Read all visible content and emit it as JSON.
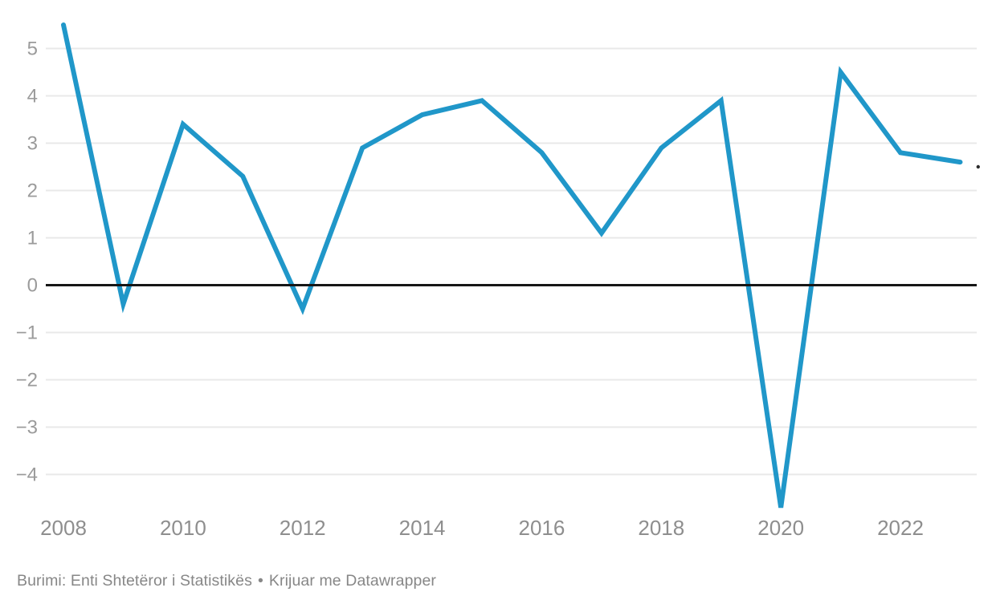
{
  "footer": {
    "source": "Burimi: Enti Shtetëror i Statistikës",
    "separator": "•",
    "credit": "Krijuar me Datawrapper"
  },
  "chart_data": {
    "type": "line",
    "title": "",
    "xlabel": "",
    "ylabel": "",
    "x": [
      2008,
      2009,
      2010,
      2011,
      2012,
      2013,
      2014,
      2015,
      2016,
      2017,
      2018,
      2019,
      2020,
      2021,
      2022,
      2023
    ],
    "values": [
      5.5,
      -0.4,
      3.4,
      2.3,
      -0.5,
      2.9,
      3.6,
      3.9,
      2.8,
      1.1,
      2.9,
      3.9,
      -4.7,
      4.5,
      2.8,
      2.6
    ],
    "series": [
      {
        "name": "",
        "values": [
          5.5,
          -0.4,
          3.4,
          2.3,
          -0.5,
          2.9,
          3.6,
          3.9,
          2.8,
          1.1,
          2.9,
          3.9,
          -4.7,
          4.5,
          2.8,
          2.6
        ]
      }
    ],
    "xlim": [
      2008,
      2023
    ],
    "ylim": [
      -5,
      5.6
    ],
    "grid": true,
    "legend": "none",
    "zero_baseline": true,
    "y_ticks": [
      5,
      4,
      3,
      2,
      1,
      0,
      -1,
      -2,
      -3,
      -4
    ],
    "y_tick_labels": [
      "5",
      "4",
      "3",
      "2",
      "1",
      "0",
      "−1",
      "−2",
      "−3",
      "−4"
    ],
    "x_tick_years": [
      2008,
      2010,
      2012,
      2014,
      2016,
      2018,
      2020,
      2022
    ],
    "x_tick_labels": [
      "2008",
      "2010",
      "2012",
      "2014",
      "2016",
      "2018",
      "2020",
      "2022"
    ],
    "end_marker": {
      "x": 2023.3,
      "y": 2.5
    },
    "colors": {
      "line": "#2097c9",
      "grid": "#e9e9e9",
      "zero_line": "#161616",
      "y_tick_text": "#9b9b9b",
      "x_tick_text": "#8e8e8e",
      "source_text": "#878787",
      "end_marker": "#2b2b2b",
      "background": "#ffffff"
    }
  }
}
